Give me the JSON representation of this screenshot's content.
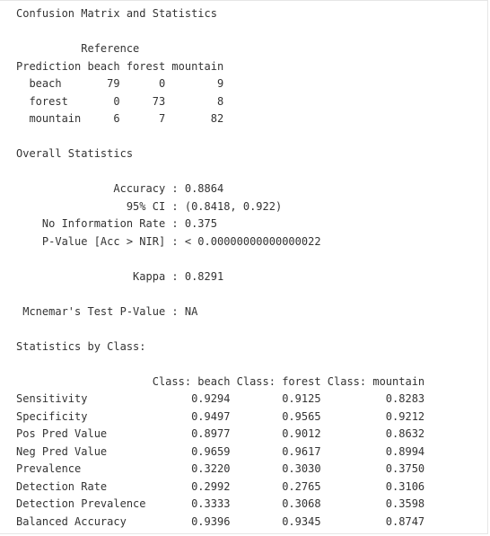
{
  "console_lines": [
    "Confusion Matrix and Statistics",
    "",
    "          Reference",
    "Prediction beach forest mountain",
    "  beach       79      0        9",
    "  forest       0     73        8",
    "  mountain     6      7       82",
    "",
    "Overall Statistics",
    "",
    "               Accuracy : 0.8864",
    "                 95% CI : (0.8418, 0.922)",
    "    No Information Rate : 0.375",
    "    P-Value [Acc > NIR] : < 0.00000000000000022",
    "",
    "                  Kappa : 0.8291",
    "",
    " Mcnemar's Test P-Value : NA",
    "",
    "Statistics by Class:",
    "",
    "                     Class: beach Class: forest Class: mountain",
    "Sensitivity                0.9294        0.9125          0.8283",
    "Specificity                0.9497        0.9565          0.9212",
    "Pos Pred Value             0.8977        0.9012          0.8632",
    "Neg Pred Value             0.9659        0.9617          0.8994",
    "Prevalence                 0.3220        0.3030          0.3750",
    "Detection Rate             0.2992        0.2765          0.3106",
    "Detection Prevalence       0.3333        0.3068          0.3598",
    "Balanced Accuracy          0.9396        0.9345          0.8747"
  ]
}
